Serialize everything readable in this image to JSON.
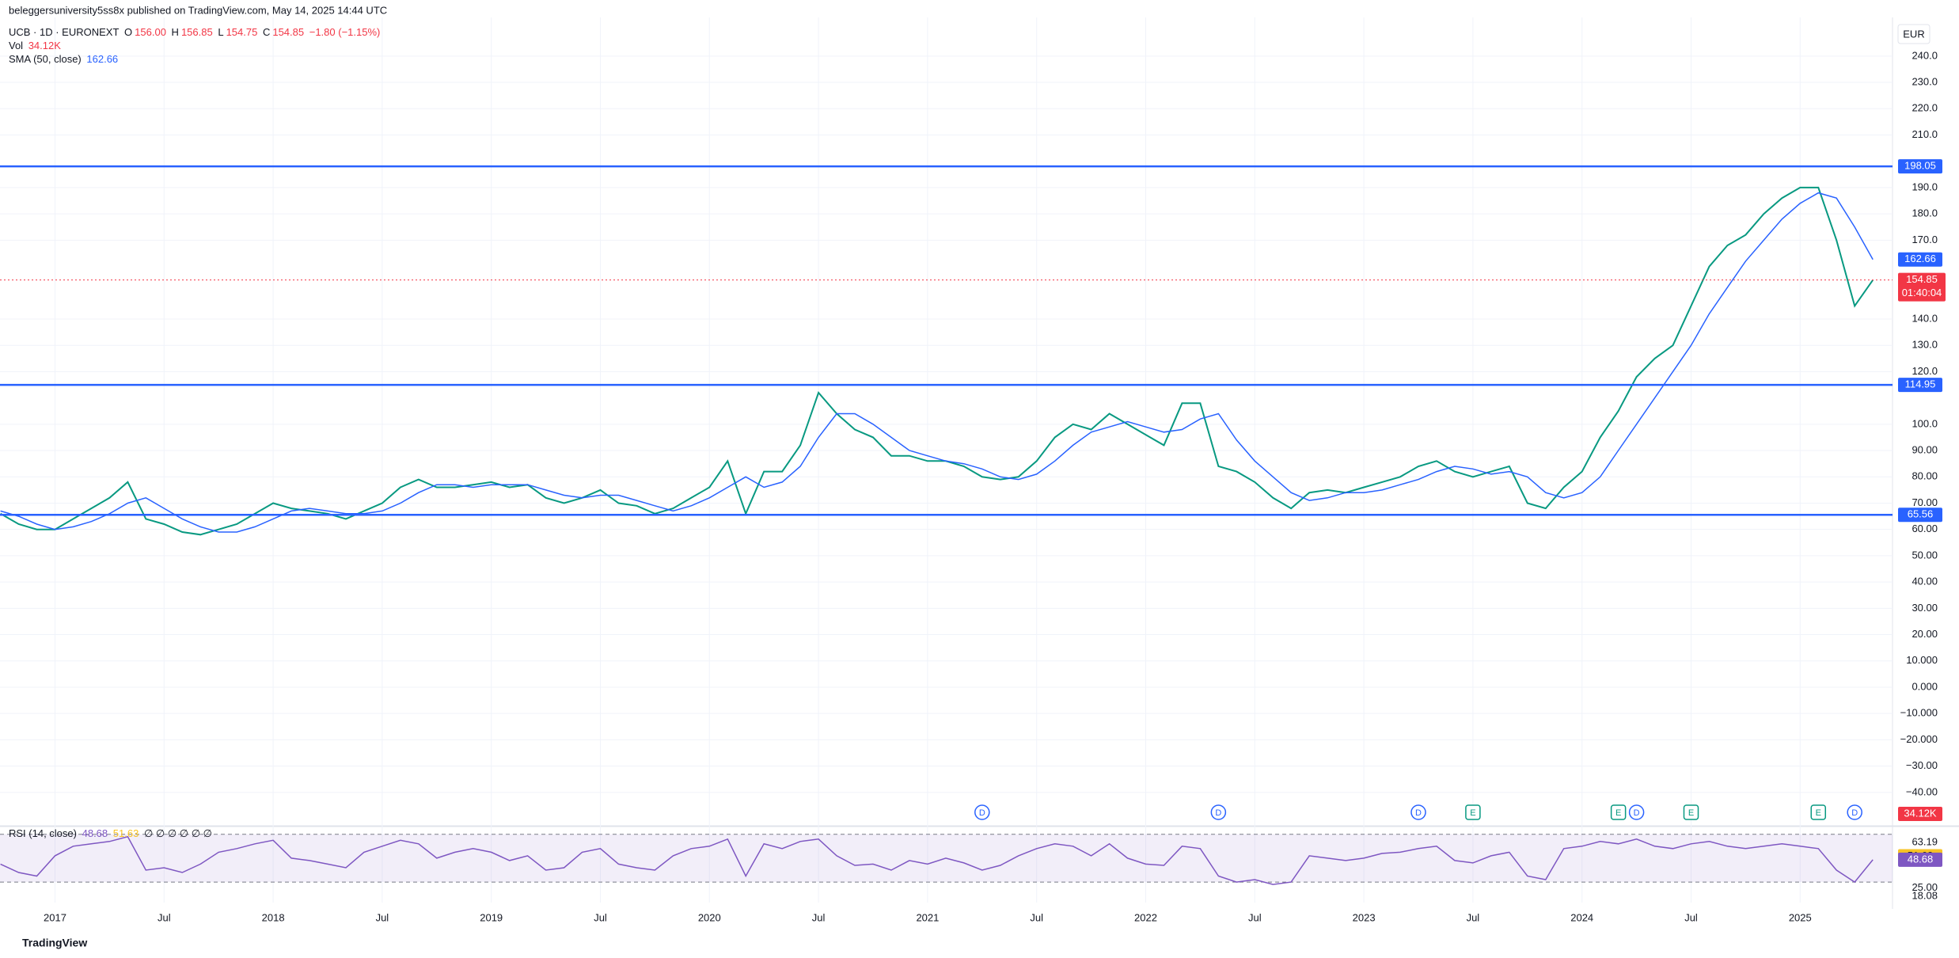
{
  "header": {
    "publisher": "beleggersuniversity5ss8x published on TradingView.com, May 14, 2025 14:44 UTC",
    "brand": "TradingView"
  },
  "chart_data": {
    "type": "line",
    "title": "UCB · 1D · EURONEXT",
    "ohlc": [
      {
        "key": "O",
        "value": "156.00"
      },
      {
        "key": "H",
        "value": "156.85"
      },
      {
        "key": "L",
        "value": "154.75"
      },
      {
        "key": "C",
        "value": "154.85"
      }
    ],
    "change": "−1.80 (−1.15%)",
    "volume": {
      "title": "Vol",
      "last": "34.12K"
    },
    "currency": "EUR",
    "grid": true,
    "x": [
      "2016-10",
      "2016-11",
      "2016-12",
      "2017-01",
      "2017-02",
      "2017-03",
      "2017-04",
      "2017-05",
      "2017-06",
      "2017-07",
      "2017-08",
      "2017-09",
      "2017-10",
      "2017-11",
      "2017-12",
      "2018-01",
      "2018-02",
      "2018-03",
      "2018-04",
      "2018-05",
      "2018-06",
      "2018-07",
      "2018-08",
      "2018-09",
      "2018-10",
      "2018-11",
      "2018-12",
      "2019-01",
      "2019-02",
      "2019-03",
      "2019-04",
      "2019-05",
      "2019-06",
      "2019-07",
      "2019-08",
      "2019-09",
      "2019-10",
      "2019-11",
      "2019-12",
      "2020-01",
      "2020-02",
      "2020-03",
      "2020-04",
      "2020-05",
      "2020-06",
      "2020-07",
      "2020-08",
      "2020-09",
      "2020-10",
      "2020-11",
      "2020-12",
      "2021-01",
      "2021-02",
      "2021-03",
      "2021-04",
      "2021-05",
      "2021-06",
      "2021-07",
      "2021-08",
      "2021-09",
      "2021-10",
      "2021-11",
      "2021-12",
      "2022-01",
      "2022-02",
      "2022-03",
      "2022-04",
      "2022-05",
      "2022-06",
      "2022-07",
      "2022-08",
      "2022-09",
      "2022-10",
      "2022-11",
      "2022-12",
      "2023-01",
      "2023-02",
      "2023-03",
      "2023-04",
      "2023-05",
      "2023-06",
      "2023-07",
      "2023-08",
      "2023-09",
      "2023-10",
      "2023-11",
      "2023-12",
      "2024-01",
      "2024-02",
      "2024-03",
      "2024-04",
      "2024-05",
      "2024-06",
      "2024-07",
      "2024-08",
      "2024-09",
      "2024-10",
      "2024-11",
      "2024-12",
      "2025-01",
      "2025-02",
      "2025-03",
      "2025-04",
      "2025-05"
    ],
    "series": [
      {
        "color": "#089981",
        "values": [
          66,
          62,
          60,
          60,
          64,
          68,
          72,
          78,
          64,
          62,
          59,
          58,
          60,
          62,
          66,
          70,
          68,
          67,
          66,
          64,
          67,
          70,
          76,
          79,
          76,
          76,
          77,
          78,
          76,
          77,
          72,
          70,
          72,
          75,
          70,
          69,
          66,
          68,
          72,
          76,
          86,
          66,
          82,
          82,
          92,
          112,
          104,
          98,
          95,
          88,
          88,
          86,
          86,
          84,
          80,
          79,
          80,
          86,
          95,
          100,
          98,
          104,
          100,
          96,
          92,
          108,
          108,
          84,
          82,
          78,
          72,
          68,
          74,
          75,
          74,
          76,
          78,
          80,
          84,
          86,
          82,
          80,
          82,
          84,
          70,
          68,
          76,
          82,
          95,
          105,
          118,
          125,
          130,
          145,
          160,
          168,
          172,
          180,
          186,
          190,
          190,
          170,
          145,
          154.85
        ]
      },
      {
        "name": "SMA (50, close)",
        "color": "#2962ff",
        "values": [
          67,
          65,
          62,
          60,
          61,
          63,
          66,
          70,
          72,
          68,
          64,
          61,
          59,
          59,
          61,
          64,
          67,
          68,
          67,
          66,
          66,
          67,
          70,
          74,
          77,
          77,
          76,
          77,
          77,
          77,
          75,
          73,
          72,
          73,
          73,
          71,
          69,
          67,
          69,
          72,
          76,
          80,
          76,
          78,
          84,
          95,
          104,
          104,
          100,
          95,
          90,
          88,
          86,
          85,
          83,
          80,
          79,
          81,
          86,
          92,
          97,
          99,
          101,
          99,
          97,
          98,
          102,
          104,
          94,
          86,
          80,
          74,
          71,
          72,
          74,
          74,
          75,
          77,
          79,
          82,
          84,
          83,
          81,
          82,
          80,
          74,
          72,
          74,
          80,
          90,
          100,
          110,
          120,
          130,
          142,
          152,
          162,
          170,
          178,
          184,
          188,
          186,
          175,
          162.66
        ]
      }
    ],
    "last_price": 154.85,
    "countdown": "01:40:04",
    "price_color": "#f23645",
    "levels": [
      198.05,
      114.95,
      65.56
    ],
    "level_color": "#2962ff",
    "ylim": [
      -52.4,
      252.9
    ],
    "yticks": [
      {
        "value": 240,
        "label": "240.0"
      },
      {
        "value": 230,
        "label": "230.0"
      },
      {
        "value": 220,
        "label": "220.0"
      },
      {
        "value": 210,
        "label": "210.0"
      },
      {
        "value": 190,
        "label": "190.0"
      },
      {
        "value": 180,
        "label": "180.0"
      },
      {
        "value": 170,
        "label": "170.0"
      },
      {
        "value": 140,
        "label": "140.0"
      },
      {
        "value": 130,
        "label": "130.0"
      },
      {
        "value": 120,
        "label": "120.0"
      },
      {
        "value": 100,
        "label": "100.0"
      },
      {
        "value": 90,
        "label": "90.00"
      },
      {
        "value": 80,
        "label": "80.00"
      },
      {
        "value": 70,
        "label": "70.00"
      },
      {
        "value": 60,
        "label": "60.00"
      },
      {
        "value": 50,
        "label": "50.00"
      },
      {
        "value": 40,
        "label": "40.00"
      },
      {
        "value": 30,
        "label": "30.00"
      },
      {
        "value": 20,
        "label": "20.00"
      },
      {
        "value": 10,
        "label": "10.000"
      },
      {
        "value": 0,
        "label": "0.000"
      },
      {
        "value": -10,
        "label": "−10.000"
      },
      {
        "value": -20,
        "label": "−20.000"
      },
      {
        "value": -30,
        "label": "−30.00"
      },
      {
        "value": -40,
        "label": "−40.00"
      }
    ],
    "xticks": [
      {
        "value": "2017-01",
        "label": "2017"
      },
      {
        "value": "2017-07",
        "label": "Jul"
      },
      {
        "value": "2018-01",
        "label": "2018"
      },
      {
        "value": "2018-07",
        "label": "Jul"
      },
      {
        "value": "2019-01",
        "label": "2019"
      },
      {
        "value": "2019-07",
        "label": "Jul"
      },
      {
        "value": "2020-01",
        "label": "2020"
      },
      {
        "value": "2020-07",
        "label": "Jul"
      },
      {
        "value": "2021-01",
        "label": "2021"
      },
      {
        "value": "2021-07",
        "label": "Jul"
      },
      {
        "value": "2022-01",
        "label": "2022"
      },
      {
        "value": "2022-07",
        "label": "Jul"
      },
      {
        "value": "2023-01",
        "label": "2023"
      },
      {
        "value": "2023-07",
        "label": "Jul"
      },
      {
        "value": "2024-01",
        "label": "2024"
      },
      {
        "value": "2024-07",
        "label": "Jul"
      },
      {
        "value": "2025-01",
        "label": "2025"
      }
    ],
    "events": [
      {
        "x": "2021-04",
        "label": "D"
      },
      {
        "x": "2022-05",
        "label": "D"
      },
      {
        "x": "2023-04",
        "label": "D"
      },
      {
        "x": "2023-07",
        "label": "E"
      },
      {
        "x": "2024-03",
        "label": "E"
      },
      {
        "x": "2024-04",
        "label": "D"
      },
      {
        "x": "2024-07",
        "label": "E"
      },
      {
        "x": "2025-02",
        "label": "E"
      },
      {
        "x": "2025-04",
        "label": "D"
      }
    ],
    "rsi": {
      "title": "RSI (14, close)",
      "color": "#7e57c2",
      "ma_color": "#f7c325",
      "last": 48.68,
      "ma_last": 51.63,
      "placeholders": "∅ ∅ ∅ ∅ ∅ ∅",
      "values": [
        45,
        38,
        35,
        52,
        60,
        62,
        64,
        68,
        40,
        42,
        38,
        45,
        55,
        58,
        62,
        65,
        50,
        48,
        45,
        42,
        55,
        60,
        65,
        62,
        50,
        55,
        58,
        55,
        48,
        52,
        40,
        42,
        55,
        58,
        45,
        42,
        40,
        52,
        58,
        60,
        66,
        35,
        62,
        58,
        64,
        66,
        52,
        44,
        45,
        40,
        48,
        45,
        50,
        46,
        40,
        44,
        52,
        58,
        62,
        60,
        52,
        62,
        50,
        45,
        44,
        60,
        58,
        35,
        30,
        32,
        28,
        30,
        52,
        50,
        48,
        50,
        54,
        55,
        58,
        60,
        48,
        46,
        52,
        55,
        35,
        32,
        58,
        60,
        64,
        62,
        66,
        60,
        58,
        62,
        64,
        60,
        58,
        60,
        62,
        60,
        58,
        40,
        30,
        48.68
      ],
      "bands": [
        70,
        30
      ],
      "ylim": [
        12.8,
        75.8
      ],
      "yticks": [
        63.19,
        {
          "value": 25,
          "label": "25.00"
        },
        18.08
      ]
    }
  }
}
